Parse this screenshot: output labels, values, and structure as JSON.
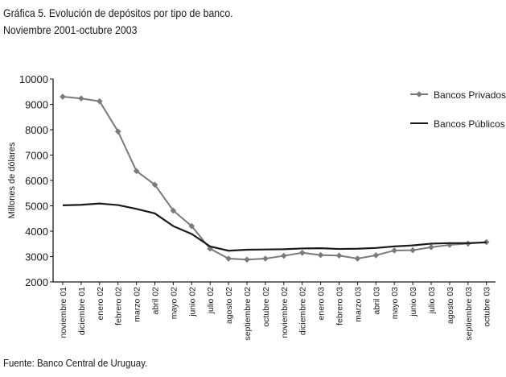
{
  "header": {
    "title_line1": "Gráfica 5. Evolución de depósitos por tipo de banco.",
    "title_line2": "Noviembre 2001-octubre 2003"
  },
  "footer": {
    "source": "Fuente: Banco Central de Uruguay."
  },
  "chart_data": {
    "type": "line",
    "title": "Gráfica 5. Evolución de depósitos por tipo de banco.",
    "subtitle": "Noviembre 2001-octubre 2003",
    "xlabel": "",
    "ylabel": "Millones de dólares",
    "ylim": [
      2000,
      10000
    ],
    "yticks": [
      2000,
      3000,
      4000,
      5000,
      6000,
      7000,
      8000,
      9000,
      10000
    ],
    "grid": false,
    "legend_position": "top-right",
    "categories": [
      "noviembre 01",
      "diciembre 01",
      "enero 02",
      "febrero 02",
      "marzo 02",
      "abril 02",
      "mayo 02",
      "junio 02",
      "julio 02",
      "agosto 02",
      "septiembre 02",
      "octubre 02",
      "noviembre 02",
      "diciembre 02",
      "enero 03",
      "febrero 03",
      "marzo 03",
      "abril 03",
      "mayo 03",
      "junio 03",
      "julio 03",
      "agosto 03",
      "septiembre 03",
      "octubre 03"
    ],
    "series": [
      {
        "name": "Bancos Privados",
        "color": "#7a7a7a",
        "marker": "diamond",
        "values": [
          9300,
          9230,
          9120,
          7930,
          6370,
          5830,
          4810,
          4200,
          3310,
          2920,
          2880,
          2920,
          3030,
          3150,
          3060,
          3040,
          2920,
          3050,
          3240,
          3250,
          3370,
          3460,
          3510,
          3570
        ]
      },
      {
        "name": "Bancos Públicos",
        "color": "#1a1a1a",
        "marker": "none",
        "values": [
          5020,
          5040,
          5090,
          5030,
          4880,
          4700,
          4200,
          3890,
          3400,
          3230,
          3270,
          3280,
          3290,
          3320,
          3330,
          3300,
          3310,
          3340,
          3400,
          3440,
          3510,
          3530,
          3530,
          3560
        ]
      }
    ]
  }
}
